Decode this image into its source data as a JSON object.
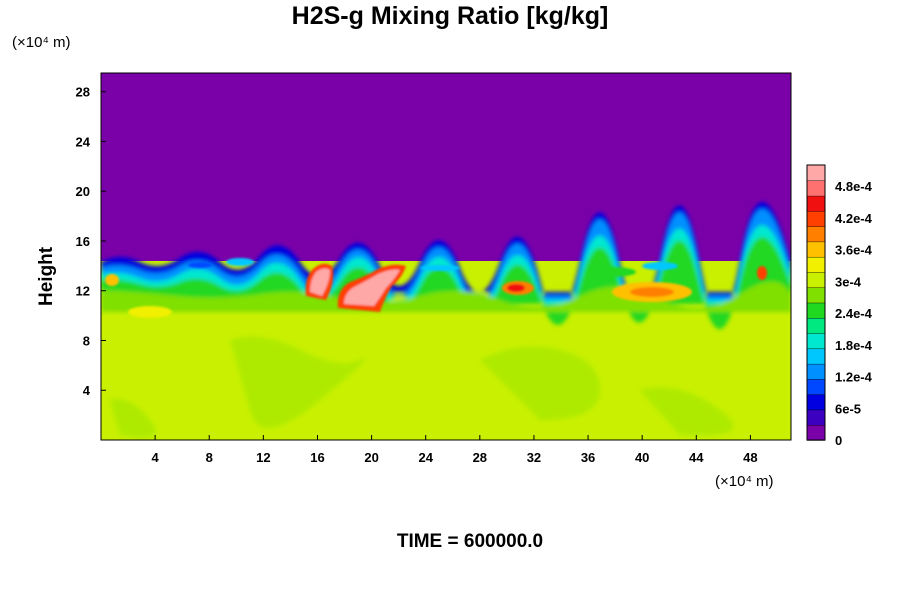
{
  "chart_data": {
    "type": "heatmap",
    "title": "H2S-g Mixing Ratio [kg/kg]",
    "ylabel": "Height",
    "x_unit_label": "(×10⁴ m)",
    "y_unit_label": "(×10⁴ m)",
    "footer": "TIME = 600000.0",
    "xlim": [
      0,
      51
    ],
    "ylim": [
      0,
      29.5
    ],
    "x_ticks": [
      "4",
      "8",
      "12",
      "16",
      "20",
      "24",
      "28",
      "32",
      "36",
      "40",
      "44",
      "48"
    ],
    "x_tick_values": [
      4,
      8,
      12,
      16,
      20,
      24,
      28,
      32,
      36,
      40,
      44,
      48
    ],
    "y_ticks": [
      "4",
      "8",
      "12",
      "16",
      "20",
      "24",
      "28"
    ],
    "y_tick_values": [
      4,
      8,
      12,
      16,
      20,
      24,
      28
    ],
    "colorbar": {
      "vmin": 0,
      "vmax": 0.00052,
      "labels": [
        "0",
        "6e-5",
        "1.2e-4",
        "1.8e-4",
        "2.4e-4",
        "3e-4",
        "3.6e-4",
        "4.2e-4",
        "4.8e-4"
      ],
      "label_values": [
        0,
        6e-05,
        0.00012,
        0.00018,
        0.00024,
        0.0003,
        0.00036,
        0.00042,
        0.00048
      ],
      "colors": [
        "#7a00a8",
        "#3c00c0",
        "#0000e0",
        "#0048ff",
        "#0090ff",
        "#00c8ff",
        "#00e8d0",
        "#00e880",
        "#20d820",
        "#80e000",
        "#c8f000",
        "#f0f000",
        "#ffc000",
        "#ff8000",
        "#ff4000",
        "#f01010",
        "#ff7070",
        "#ffa8a8"
      ]
    },
    "field_notes": {
      "background_upper": 0,
      "background_lower": 0.00035,
      "layer_top_height": 14.5
    }
  }
}
